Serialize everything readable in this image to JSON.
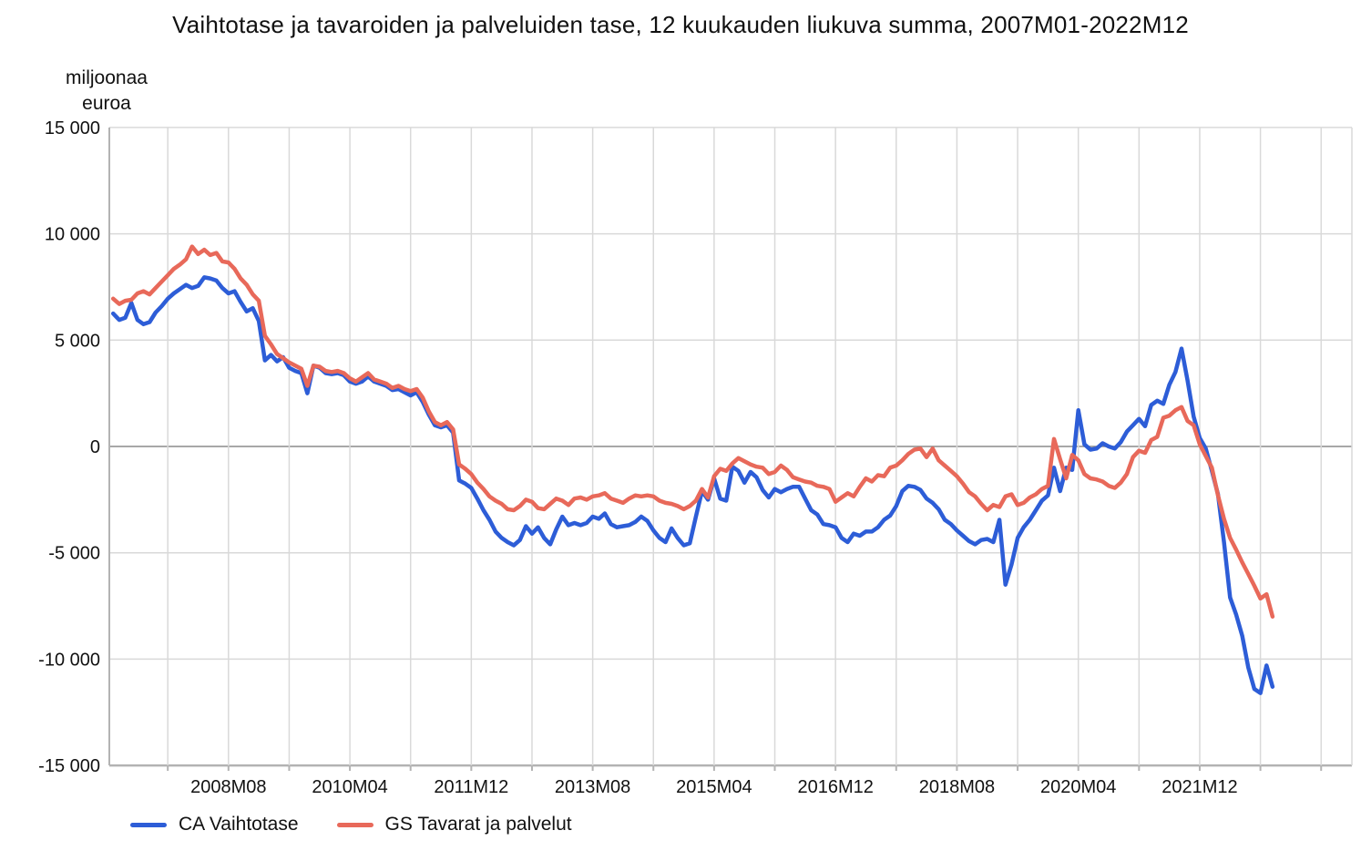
{
  "title": "Vaihtotase ja tavaroiden ja palveluiden tase, 12 kuukauden liukuva summa, 2007M01-2022M12",
  "y_axis": {
    "unit_label_lines": [
      "miljoonaa",
      "euroa"
    ],
    "tick_labels": [
      "15 000",
      "10 000",
      "5 000",
      "0",
      "-5 000",
      "-10 000",
      "-15 000"
    ],
    "tick_values": [
      15000,
      10000,
      5000,
      0,
      -5000,
      -10000,
      -15000
    ]
  },
  "x_axis": {
    "tick_labels": [
      "2008M08",
      "2010M04",
      "2011M12",
      "2013M08",
      "2015M04",
      "2016M12",
      "2018M08",
      "2020M04",
      "2021M12"
    ],
    "tick_month_indices": [
      19,
      39,
      59,
      79,
      99,
      119,
      139,
      159,
      179
    ],
    "gridline_month_step": 10,
    "first_gridline_month_index": 9,
    "last_gridline_month_index": 199
  },
  "legend": {
    "items": [
      {
        "label": "CA Vaihtotase",
        "color": "#2D5DD7"
      },
      {
        "label": "GS Tavarat ja palvelut",
        "color": "#E8695A"
      }
    ]
  },
  "chart_data": {
    "type": "line",
    "title": "Vaihtotase ja tavaroiden ja palveluiden tase, 12 kuukauden liukuva summa, 2007M01-2022M12",
    "ylabel": "miljoonaa euroa",
    "ylim": [
      -15000,
      15000
    ],
    "x_start": "2007M01",
    "x_end": "2022M12",
    "x_unit": "month",
    "grid": true,
    "legend_position": "bottom-left",
    "series": [
      {
        "name": "CA Vaihtotase",
        "color": "#2D5DD7",
        "values": [
          6250,
          5950,
          6050,
          6750,
          5950,
          5750,
          5850,
          6300,
          6600,
          6950,
          7200,
          7400,
          7600,
          7450,
          7550,
          7950,
          7900,
          7800,
          7450,
          7200,
          7300,
          6800,
          6350,
          6500,
          5900,
          4050,
          4300,
          4000,
          4200,
          3700,
          3550,
          3450,
          2500,
          3800,
          3700,
          3450,
          3400,
          3450,
          3350,
          3050,
          2950,
          3050,
          3300,
          3050,
          2950,
          2850,
          2650,
          2700,
          2550,
          2400,
          2550,
          2100,
          1500,
          1000,
          900,
          1000,
          650,
          -1600,
          -1750,
          -1950,
          -2450,
          -3000,
          -3450,
          -4000,
          -4300,
          -4500,
          -4650,
          -4400,
          -3750,
          -4100,
          -3800,
          -4300,
          -4600,
          -3900,
          -3300,
          -3700,
          -3600,
          -3700,
          -3600,
          -3300,
          -3400,
          -3150,
          -3650,
          -3800,
          -3750,
          -3700,
          -3550,
          -3300,
          -3500,
          -3950,
          -4300,
          -4500,
          -3850,
          -4300,
          -4650,
          -4550,
          -3300,
          -2100,
          -2500,
          -1500,
          -2450,
          -2550,
          -950,
          -1150,
          -1700,
          -1200,
          -1450,
          -2050,
          -2400,
          -2000,
          -2150,
          -2000,
          -1900,
          -1900,
          -2450,
          -3000,
          -3200,
          -3650,
          -3700,
          -3800,
          -4300,
          -4500,
          -4100,
          -4200,
          -4000,
          -4000,
          -3800,
          -3450,
          -3250,
          -2800,
          -2100,
          -1850,
          -1900,
          -2050,
          -2450,
          -2650,
          -2950,
          -3450,
          -3650,
          -3950,
          -4200,
          -4450,
          -4600,
          -4400,
          -4350,
          -4500,
          -3450,
          -6500,
          -5550,
          -4300,
          -3800,
          -3450,
          -3000,
          -2550,
          -2300,
          -1000,
          -2100,
          -1000,
          -1100,
          1700,
          100,
          -150,
          -100,
          150,
          0,
          -100,
          200,
          700,
          1000,
          1300,
          950,
          1950,
          2150,
          2000,
          2900,
          3500,
          4600,
          3100,
          1400,
          400,
          -100,
          -1150,
          -2250,
          -4500,
          -7100,
          -7900,
          -8900,
          -10400,
          -11400,
          -11600,
          -10300,
          -11300
        ]
      },
      {
        "name": "GS Tavarat ja palvelut",
        "color": "#E8695A",
        "values": [
          6950,
          6700,
          6850,
          6900,
          7200,
          7300,
          7150,
          7450,
          7750,
          8050,
          8350,
          8550,
          8800,
          9400,
          9050,
          9250,
          9000,
          9100,
          8700,
          8650,
          8350,
          7900,
          7600,
          7150,
          6850,
          5200,
          4800,
          4350,
          4150,
          3950,
          3800,
          3650,
          2850,
          3800,
          3750,
          3550,
          3500,
          3550,
          3450,
          3200,
          3050,
          3250,
          3450,
          3150,
          3050,
          2950,
          2750,
          2850,
          2700,
          2600,
          2700,
          2300,
          1650,
          1150,
          1000,
          1150,
          800,
          -850,
          -1050,
          -1300,
          -1700,
          -2000,
          -2350,
          -2550,
          -2700,
          -2950,
          -3000,
          -2800,
          -2500,
          -2600,
          -2900,
          -2950,
          -2700,
          -2450,
          -2550,
          -2750,
          -2450,
          -2400,
          -2500,
          -2350,
          -2300,
          -2200,
          -2450,
          -2550,
          -2650,
          -2450,
          -2300,
          -2350,
          -2300,
          -2350,
          -2550,
          -2650,
          -2700,
          -2800,
          -2950,
          -2800,
          -2550,
          -2000,
          -2400,
          -1400,
          -1050,
          -1150,
          -800,
          -550,
          -700,
          -850,
          -950,
          -1000,
          -1300,
          -1200,
          -900,
          -1100,
          -1450,
          -1550,
          -1650,
          -1700,
          -1850,
          -1900,
          -2000,
          -2600,
          -2400,
          -2200,
          -2350,
          -1900,
          -1500,
          -1650,
          -1350,
          -1400,
          -1000,
          -900,
          -650,
          -350,
          -150,
          -100,
          -500,
          -100,
          -650,
          -900,
          -1150,
          -1400,
          -1750,
          -2150,
          -2350,
          -2700,
          -3000,
          -2750,
          -2850,
          -2350,
          -2250,
          -2750,
          -2650,
          -2400,
          -2250,
          -2000,
          -1850,
          350,
          -600,
          -1500,
          -400,
          -650,
          -1300,
          -1500,
          -1550,
          -1650,
          -1850,
          -1950,
          -1700,
          -1300,
          -500,
          -200,
          -300,
          300,
          450,
          1350,
          1450,
          1700,
          1850,
          1200,
          1000,
          100,
          -450,
          -1000,
          -2300,
          -3400,
          -4300,
          -4850,
          -5450,
          -6000,
          -6550,
          -7150,
          -6950,
          -8000
        ]
      }
    ]
  },
  "colors": {
    "gridline": "#d9d9d9",
    "zero_line": "#8c8c8c",
    "axis_line": "#b3b3b3",
    "text": "#111111"
  }
}
